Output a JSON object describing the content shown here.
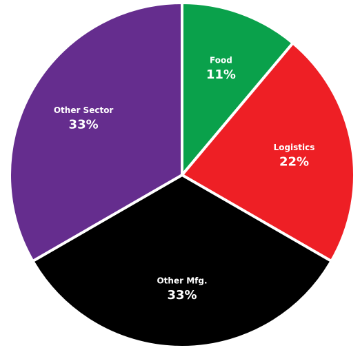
{
  "chart_data": {
    "type": "pie",
    "categories": [
      "Food",
      "Logistics",
      "Other Mfg.",
      "Other Sector"
    ],
    "values": [
      11,
      22,
      33,
      33
    ],
    "value_labels": [
      "11%",
      "22%",
      "33%",
      "33%"
    ],
    "colors": [
      "#0aa14b",
      "#ee1f25",
      "#000000",
      "#652d8e"
    ]
  }
}
